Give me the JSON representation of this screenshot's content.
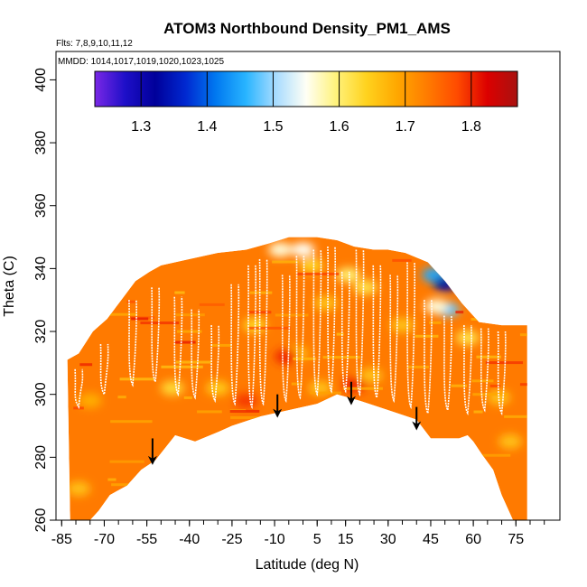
{
  "chart_data": {
    "type": "heatmap",
    "title": "ATOM3 Northbound Density_PM1_AMS",
    "flights_note": "Flts: 7,8,9,10,11,12",
    "dates_note": "MMDD: 1014,1017,1019,1020,1023,1025",
    "xlabel": "Latitude (deg N)",
    "ylabel": "Theta (C)",
    "xlim": [
      -85,
      85
    ],
    "ylim": [
      260,
      405
    ],
    "x_ticks": [
      -85,
      -70,
      -55,
      -40,
      -25,
      -10,
      5,
      15,
      30,
      45,
      60,
      75
    ],
    "x_tick_labels": [
      "-85",
      "-70",
      "-55",
      "-40",
      "-25",
      "-10",
      "5",
      "15",
      "30",
      "45",
      "60",
      "75"
    ],
    "x_minor_step": 5,
    "y_ticks": [
      260,
      280,
      300,
      320,
      340,
      360,
      380,
      400
    ],
    "y_tick_labels": [
      "260",
      "280",
      "300",
      "320",
      "340",
      "360",
      "380",
      "400"
    ],
    "colorbar": {
      "range": [
        1.23,
        1.87
      ],
      "ticks": [
        1.3,
        1.4,
        1.5,
        1.6,
        1.7,
        1.8
      ],
      "tick_labels": [
        "1.3",
        "1.4",
        "1.5",
        "1.6",
        "1.7",
        "1.8"
      ],
      "stops": [
        "#7a28e6",
        "#1e0fc8",
        "#00009a",
        "#0028d0",
        "#0078f0",
        "#28b4ff",
        "#a8dcff",
        "#fffff5",
        "#fff27a",
        "#ffd21e",
        "#ffa800",
        "#ff7c00",
        "#ff4b00",
        "#dc0000",
        "#a81210"
      ]
    },
    "envelope_top": [
      [
        -83,
        311
      ],
      [
        -79,
        313
      ],
      [
        -74,
        320
      ],
      [
        -69,
        324
      ],
      [
        -64,
        330
      ],
      [
        -59,
        336
      ],
      [
        -54,
        339
      ],
      [
        -50,
        341
      ],
      [
        -40,
        343
      ],
      [
        -30,
        345
      ],
      [
        -20,
        346
      ],
      [
        -12,
        348
      ],
      [
        -5,
        350
      ],
      [
        5,
        350
      ],
      [
        12,
        349
      ],
      [
        18,
        347
      ],
      [
        25,
        346
      ],
      [
        30,
        346
      ],
      [
        36,
        345
      ],
      [
        44,
        342
      ],
      [
        50,
        336
      ],
      [
        56,
        329
      ],
      [
        62,
        323
      ],
      [
        70,
        322
      ],
      [
        79,
        322
      ]
    ],
    "envelope_bottom": [
      [
        79,
        260
      ],
      [
        74,
        260
      ],
      [
        70,
        268
      ],
      [
        67,
        276
      ],
      [
        63,
        281
      ],
      [
        60,
        285
      ],
      [
        58,
        287
      ],
      [
        55,
        286
      ],
      [
        50,
        286
      ],
      [
        45,
        286
      ],
      [
        40,
        292
      ],
      [
        30,
        295
      ],
      [
        20,
        298
      ],
      [
        12,
        300
      ],
      [
        5,
        297
      ],
      [
        -5,
        295
      ],
      [
        -15,
        293
      ],
      [
        -25,
        290
      ],
      [
        -30,
        288
      ],
      [
        -38,
        285
      ],
      [
        -45,
        287
      ],
      [
        -52,
        279
      ],
      [
        -57,
        276
      ],
      [
        -62,
        271
      ],
      [
        -68,
        268
      ],
      [
        -72,
        263
      ],
      [
        -75,
        260
      ],
      [
        -82,
        260
      ]
    ],
    "background_value": 1.735,
    "anomalies": [
      {
        "lat": -8,
        "theta": 346,
        "value": 1.56
      },
      {
        "lat": 0,
        "theta": 346,
        "value": 1.55
      },
      {
        "lat": 3,
        "theta": 341,
        "value": 1.64
      },
      {
        "lat": 16,
        "theta": 338,
        "value": 1.6
      },
      {
        "lat": 22,
        "theta": 334,
        "value": 1.62
      },
      {
        "lat": 8,
        "theta": 329,
        "value": 1.66
      },
      {
        "lat": -17,
        "theta": 322,
        "value": 1.64
      },
      {
        "lat": -2,
        "theta": 313,
        "value": 1.67
      },
      {
        "lat": -46,
        "theta": 302,
        "value": 1.63
      },
      {
        "lat": -30,
        "theta": 302,
        "value": 1.65
      },
      {
        "lat": 6,
        "theta": 302,
        "value": 1.66
      },
      {
        "lat": 24,
        "theta": 306,
        "value": 1.66
      },
      {
        "lat": 35,
        "theta": 322,
        "value": 1.66
      },
      {
        "lat": 46,
        "theta": 338,
        "value": 1.45
      },
      {
        "lat": 50,
        "theta": 335,
        "value": 1.33
      },
      {
        "lat": 51,
        "theta": 327,
        "value": 1.48
      },
      {
        "lat": 47,
        "theta": 328,
        "value": 1.56
      },
      {
        "lat": 58,
        "theta": 318,
        "value": 1.62
      },
      {
        "lat": 69,
        "theta": 299,
        "value": 1.66
      },
      {
        "lat": 73,
        "theta": 285,
        "value": 1.66
      },
      {
        "lat": -75,
        "theta": 298,
        "value": 1.68
      },
      {
        "lat": -79,
        "theta": 270,
        "value": 1.66
      },
      {
        "lat": -6,
        "theta": 312,
        "value": 1.8
      },
      {
        "lat": -20,
        "theta": 298,
        "value": 1.79
      },
      {
        "lat": 18,
        "theta": 303,
        "value": 1.8
      }
    ],
    "sampling_tracks": [
      {
        "lat": -79,
        "top": 308,
        "bottom": 296
      },
      {
        "lat": -70,
        "top": 316,
        "bottom": 300
      },
      {
        "lat": -60,
        "top": 330,
        "bottom": 303
      },
      {
        "lat": -52,
        "top": 334,
        "bottom": 304
      },
      {
        "lat": -44,
        "top": 331,
        "bottom": 300
      },
      {
        "lat": -38,
        "top": 327,
        "bottom": 299
      },
      {
        "lat": -31,
        "top": 322,
        "bottom": 298
      },
      {
        "lat": -24,
        "top": 335,
        "bottom": 297
      },
      {
        "lat": -18,
        "top": 341,
        "bottom": 296
      },
      {
        "lat": -14,
        "top": 343,
        "bottom": 297
      },
      {
        "lat": -6,
        "top": 338,
        "bottom": 298
      },
      {
        "lat": -1,
        "top": 344,
        "bottom": 299
      },
      {
        "lat": 5,
        "top": 346,
        "bottom": 300
      },
      {
        "lat": 10,
        "top": 347,
        "bottom": 301
      },
      {
        "lat": 15,
        "top": 339,
        "bottom": 301
      },
      {
        "lat": 20,
        "top": 346,
        "bottom": 300
      },
      {
        "lat": 26,
        "top": 341,
        "bottom": 299
      },
      {
        "lat": 32,
        "top": 338,
        "bottom": 298
      },
      {
        "lat": 38,
        "top": 342,
        "bottom": 296
      },
      {
        "lat": 44,
        "top": 330,
        "bottom": 294
      },
      {
        "lat": 51,
        "top": 325,
        "bottom": 295
      },
      {
        "lat": 58,
        "top": 322,
        "bottom": 294
      },
      {
        "lat": 64,
        "top": 321,
        "bottom": 295
      },
      {
        "lat": 70,
        "top": 320,
        "bottom": 294
      }
    ],
    "arrows": [
      {
        "lat": -53,
        "theta_from": 286,
        "theta_to": 279
      },
      {
        "lat": -9,
        "theta_from": 300,
        "theta_to": 294
      },
      {
        "lat": 17,
        "theta_from": 304,
        "theta_to": 298
      },
      {
        "lat": 40,
        "theta_from": 296,
        "theta_to": 290
      }
    ]
  }
}
